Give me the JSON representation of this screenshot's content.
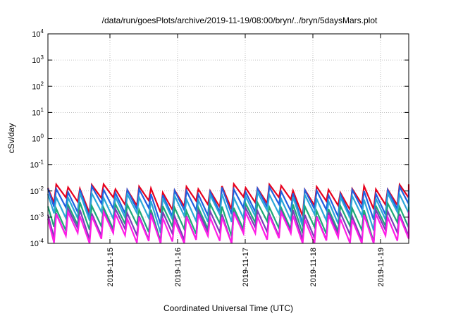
{
  "chart_data": {
    "type": "line",
    "title": "/data/run/goesPlots/archive/2019-11-19/08:00/bryn/../bryn/5daysMars.plot",
    "xlabel": "Coordinated Universal Time (UTC)",
    "ylabel": "cSv/day",
    "y_scale": "log",
    "ylim": [
      0.0001,
      10000
    ],
    "xlim": [
      "2019-11-14 02:00",
      "2019-11-19 10:00"
    ],
    "grid": true,
    "legend": "none",
    "y_ticks": [
      {
        "base": "10",
        "exp": "-4"
      },
      {
        "base": "10",
        "exp": "-3"
      },
      {
        "base": "10",
        "exp": "-2"
      },
      {
        "base": "10",
        "exp": "-1"
      },
      {
        "base": "10",
        "exp": "0"
      },
      {
        "base": "10",
        "exp": "1"
      },
      {
        "base": "10",
        "exp": "2"
      },
      {
        "base": "10",
        "exp": "3"
      },
      {
        "base": "10",
        "exp": "4"
      }
    ],
    "x_ticks": [
      {
        "label": "2019-11-15",
        "date": "2019-11-15 00:00"
      },
      {
        "label": "2019-11-16",
        "date": "2019-11-16 00:00"
      },
      {
        "label": "2019-11-17",
        "date": "2019-11-17 00:00"
      },
      {
        "label": "2019-11-18",
        "date": "2019-11-18 00:00"
      },
      {
        "label": "2019-11-19",
        "date": "2019-11-19 00:00"
      }
    ],
    "orbit_period_hours": 4.2,
    "series": [
      {
        "color": "#e8001c",
        "peak": 0.013,
        "trough": 0.0035
      },
      {
        "color": "#1f5fe0",
        "peak": 0.01,
        "trough": 0.0018
      },
      {
        "color": "#2aa6d8",
        "peak": 0.006,
        "trough": 0.001
      },
      {
        "color": "#1ea878",
        "peak": 0.0025,
        "trough": 0.0004
      },
      {
        "color": "#7a3fb8",
        "peak": 0.0015,
        "trough": 0.00022
      },
      {
        "color": "#ff1ce6",
        "peak": 0.0011,
        "trough": 0.00015
      }
    ]
  }
}
